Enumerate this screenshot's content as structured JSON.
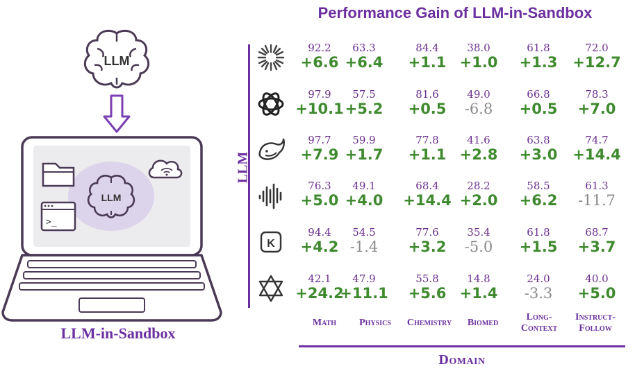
{
  "title": "Performance Gain of LLM-in-Sandbox",
  "caption": "LLM-in-Sandbox",
  "illustration": {
    "brain_top_label": "LLM",
    "brain_screen_label": "LLM",
    "terminal_prompt": ">_"
  },
  "axes": {
    "y_label": "LLM",
    "x_label": "Domain"
  },
  "chart_data": {
    "type": "table",
    "title": "Performance Gain of LLM-in-Sandbox",
    "xlabel": "Domain",
    "ylabel": "LLM",
    "columns": [
      "Math",
      "Physics",
      "Chemistry",
      "Biomed",
      "Long-Context",
      "Instruct-Follow"
    ],
    "column_lines": [
      [
        "Math"
      ],
      [
        "Physics"
      ],
      [
        "Chemistry"
      ],
      [
        "Biomed"
      ],
      [
        "Long-",
        "Context"
      ],
      [
        "Instruct-",
        "Follow"
      ]
    ],
    "rows": [
      {
        "model_icon": "starburst-icon",
        "base": [
          "92.2",
          "63.3",
          "84.4",
          "38.0",
          "61.8",
          "72.0"
        ],
        "gain": [
          "+6.6",
          "+6.4",
          "+1.1",
          "+1.0",
          "+1.3",
          "+12.7"
        ]
      },
      {
        "model_icon": "openai-knot-icon",
        "base": [
          "97.9",
          "57.5",
          "81.6",
          "49.0",
          "66.8",
          "78.3"
        ],
        "gain": [
          "+10.1",
          "+5.2",
          "+0.5",
          "-6.8",
          "+0.5",
          "+7.0"
        ]
      },
      {
        "model_icon": "whale-icon",
        "base": [
          "97.7",
          "59.9",
          "77.8",
          "41.6",
          "63.8",
          "74.7"
        ],
        "gain": [
          "+7.9",
          "+1.7",
          "+1.1",
          "+2.8",
          "+3.0",
          "+14.4"
        ]
      },
      {
        "model_icon": "soundwave-icon",
        "base": [
          "76.3",
          "49.1",
          "68.4",
          "28.2",
          "58.5",
          "61.3"
        ],
        "gain": [
          "+5.0",
          "+4.0",
          "+14.4",
          "+2.0",
          "+6.2",
          "-11.7"
        ]
      },
      {
        "model_icon": "k-badge-icon",
        "base": [
          "94.4",
          "54.5",
          "77.6",
          "35.4",
          "61.8",
          "68.7"
        ],
        "gain": [
          "+4.2",
          "-1.4",
          "+3.2",
          "-5.0",
          "+1.5",
          "+3.7"
        ]
      },
      {
        "model_icon": "hexagram-knot-icon",
        "base": [
          "42.1",
          "47.9",
          "55.8",
          "14.8",
          "24.0",
          "40.0"
        ],
        "gain": [
          "+24.2",
          "+11.1",
          "+5.6",
          "+1.4",
          "-3.3",
          "+5.0"
        ]
      }
    ]
  },
  "colors": {
    "accent": "#6b2fa0",
    "positive": "#3f8a2f",
    "negative": "#8a8a8a",
    "base_value": "#6b2f8f"
  }
}
